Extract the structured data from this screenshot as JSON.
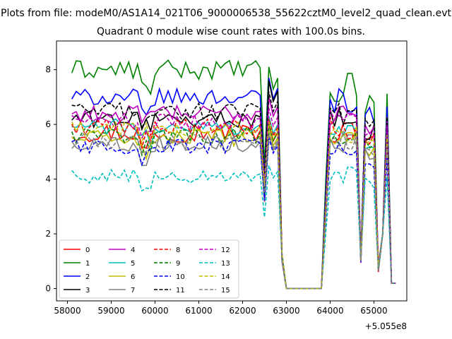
{
  "chart_data": {
    "type": "line",
    "suptitle": "Plots from file: modeM0/AS1A14_021T06_9000006538_55622cztM0_level2_quad_clean.evt",
    "title": "Quadrant 0 module wise count rates with 100.0s bins.",
    "xlabel": "",
    "ylabel": "",
    "x_offset_label": "+5.055e8",
    "x_offset": 505500000,
    "xlim": [
      57750,
      65750
    ],
    "ylim": [
      -0.45,
      9.05
    ],
    "xticks": [
      58000,
      59000,
      60000,
      61000,
      62000,
      63000,
      64000,
      65000
    ],
    "xtick_labels": [
      "58000",
      "59000",
      "60000",
      "61000",
      "62000",
      "63000",
      "64000",
      "65000"
    ],
    "yticks": [
      0,
      2,
      4,
      6,
      8
    ],
    "ytick_labels": [
      "0",
      "2",
      "4",
      "6",
      "8"
    ],
    "x_start": 58100,
    "x_step": 100,
    "bins": 75,
    "legend_position": "lower-left",
    "series": [
      {
        "name": "0",
        "color": "#ff0000",
        "dash": "solid",
        "base": 5.7,
        "amp": 0.35,
        "peak": 6.0,
        "burst": 5.9
      },
      {
        "name": "1",
        "color": "#008000",
        "dash": "solid",
        "base": 8.0,
        "amp": 0.35,
        "peak": 8.1,
        "burst": 7.5
      },
      {
        "name": "2",
        "color": "#0000ff",
        "dash": "solid",
        "base": 7.0,
        "amp": 0.3,
        "peak": 7.7,
        "burst": 7.0
      },
      {
        "name": "3",
        "color": "#000000",
        "dash": "solid",
        "base": 6.2,
        "amp": 0.3,
        "peak": 7.6,
        "burst": 6.4
      },
      {
        "name": "4",
        "color": "#bf00bf",
        "dash": "solid",
        "base": 6.4,
        "amp": 0.3,
        "peak": 7.0,
        "burst": 6.6
      },
      {
        "name": "5",
        "color": "#00bfbf",
        "dash": "solid",
        "base": 5.9,
        "amp": 0.3,
        "peak": 6.3,
        "burst": 6.0
      },
      {
        "name": "6",
        "color": "#bfbf00",
        "dash": "solid",
        "base": 5.5,
        "amp": 0.3,
        "peak": 5.8,
        "burst": 5.6
      },
      {
        "name": "7",
        "color": "#808080",
        "dash": "solid",
        "base": 5.3,
        "amp": 0.3,
        "peak": 5.6,
        "burst": 5.4
      },
      {
        "name": "8",
        "color": "#ff0000",
        "dash": "dashed",
        "base": 5.9,
        "amp": 0.3,
        "peak": 6.2,
        "burst": 6.0
      },
      {
        "name": "9",
        "color": "#008000",
        "dash": "dashed",
        "base": 5.6,
        "amp": 0.3,
        "peak": 6.0,
        "burst": 5.8
      },
      {
        "name": "10",
        "color": "#0000ff",
        "dash": "dashed",
        "base": 5.2,
        "amp": 0.3,
        "peak": 5.5,
        "burst": 5.1
      },
      {
        "name": "11",
        "color": "#000000",
        "dash": "dashed",
        "base": 6.5,
        "amp": 0.3,
        "peak": 7.2,
        "burst": 6.6
      },
      {
        "name": "12",
        "color": "#bf00bf",
        "dash": "dashed",
        "base": 6.1,
        "amp": 0.3,
        "peak": 6.6,
        "burst": 6.3
      },
      {
        "name": "13",
        "color": "#00bfbf",
        "dash": "dashed",
        "base": 4.1,
        "amp": 0.25,
        "peak": 4.5,
        "burst": 4.3
      },
      {
        "name": "14",
        "color": "#bfbf00",
        "dash": "dashed",
        "base": 5.8,
        "amp": 0.3,
        "peak": 6.1,
        "burst": 5.9
      },
      {
        "name": "15",
        "color": "#808080",
        "dash": "dashed",
        "base": 5.4,
        "amp": 0.3,
        "peak": 5.7,
        "burst": 5.5
      }
    ]
  }
}
